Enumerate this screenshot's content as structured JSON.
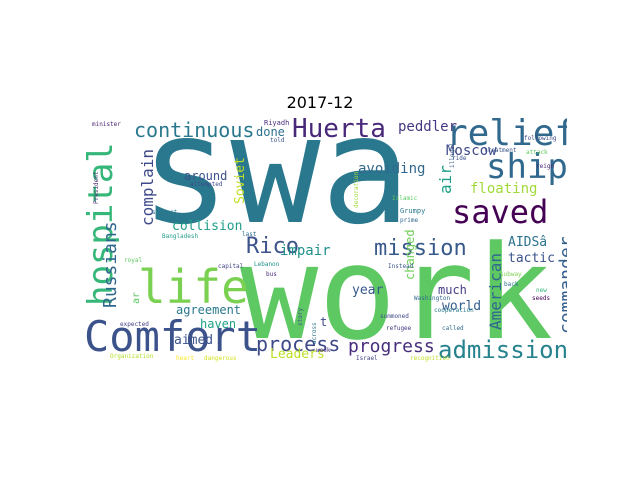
{
  "title": "2017-12",
  "words": [
    {
      "text": "swa",
      "color": "#2a788e"
    },
    {
      "text": "work",
      "color": "#5ec962"
    },
    {
      "text": "Comfort",
      "color": "#3b528b"
    },
    {
      "text": "hospital",
      "color": "#35b779"
    },
    {
      "text": "life",
      "color": "#7ad151"
    },
    {
      "text": "relief",
      "color": "#31688e"
    },
    {
      "text": "saved",
      "color": "#440154"
    },
    {
      "text": "ship",
      "color": "#31688e"
    },
    {
      "text": "mission",
      "color": "#38598c"
    },
    {
      "text": "admission",
      "color": "#26828e"
    },
    {
      "text": "Huerta",
      "color": "#482878"
    },
    {
      "text": "continuous",
      "color": "#2a788e"
    },
    {
      "text": "Rico",
      "color": "#3b528b"
    },
    {
      "text": "process",
      "color": "#3e4989"
    },
    {
      "text": "progress",
      "color": "#472d7b"
    },
    {
      "text": "commander",
      "color": "#355f8d"
    },
    {
      "text": "Russians",
      "color": "#31688e"
    },
    {
      "text": "complain",
      "color": "#3e4a89"
    },
    {
      "text": "American",
      "color": "#31688e"
    },
    {
      "text": "air",
      "color": "#1f9e89"
    },
    {
      "text": "floating",
      "color": "#a0da39"
    },
    {
      "text": "Moscow",
      "color": "#3e4a89"
    },
    {
      "text": "peddler",
      "color": "#443983"
    },
    {
      "text": "avoiding",
      "color": "#31688e"
    },
    {
      "text": "collision",
      "color": "#1f9e89"
    },
    {
      "text": "Soviet",
      "color": "#bddf26"
    },
    {
      "text": "around",
      "color": "#3b528b"
    },
    {
      "text": "done",
      "color": "#2c728e"
    },
    {
      "text": "impair",
      "color": "#21918c"
    },
    {
      "text": "agreement",
      "color": "#2a788e"
    },
    {
      "text": "aimed",
      "color": "#3b528b"
    },
    {
      "text": "haven",
      "color": "#1fa187"
    },
    {
      "text": "Leaders",
      "color": "#bddf26"
    },
    {
      "text": "changed",
      "color": "#6ece58"
    },
    {
      "text": "year",
      "color": "#38598c"
    },
    {
      "text": "much",
      "color": "#433e85"
    },
    {
      "text": "world",
      "color": "#355f8d"
    },
    {
      "text": "AIDSâ",
      "color": "#2c728e"
    },
    {
      "text": "tactic",
      "color": "#3b528b"
    },
    {
      "text": "ar",
      "color": "#5ec962"
    },
    {
      "text": "t",
      "color": "#3e4a89"
    },
    {
      "text": "minister",
      "color": "#481f70"
    },
    {
      "text": "President",
      "color": "#482475"
    },
    {
      "text": "Riyadh",
      "color": "#472d7b"
    },
    {
      "text": "told",
      "color": "#3b528b"
    },
    {
      "text": "suspect",
      "color": "#2a788e"
    },
    {
      "text": "Bangladesh",
      "color": "#1f9e89"
    },
    {
      "text": "attempted",
      "color": "#3e4a89"
    },
    {
      "text": "last",
      "color": "#31688e"
    },
    {
      "text": "Lebanon",
      "color": "#21918c"
    },
    {
      "text": "bus",
      "color": "#472d7b"
    },
    {
      "text": "capital",
      "color": "#414487"
    },
    {
      "text": "royal",
      "color": "#5ec962"
    },
    {
      "text": "expected",
      "color": "#433e85"
    },
    {
      "text": "Organization",
      "color": "#b5de2b"
    },
    {
      "text": "heart",
      "color": "#fde725"
    },
    {
      "text": "dangerous",
      "color": "#d2e21b"
    },
    {
      "text": "week",
      "color": "#46327e"
    },
    {
      "text": "story",
      "color": "#3b528b"
    },
    {
      "text": "across",
      "color": "#2c728e"
    },
    {
      "text": "Grumpy",
      "color": "#2a788e"
    },
    {
      "text": "prime",
      "color": "#31688e"
    },
    {
      "text": "Islamic",
      "color": "#5ec962"
    },
    {
      "text": "Instead",
      "color": "#38598c"
    },
    {
      "text": "summoned",
      "color": "#3e4a89"
    },
    {
      "text": "refugee",
      "color": "#443983"
    },
    {
      "text": "Israel",
      "color": "#414487"
    },
    {
      "text": "recognition",
      "color": "#c0df25"
    },
    {
      "text": "cooperation",
      "color": "#2a788e"
    },
    {
      "text": "called",
      "color": "#31688e"
    },
    {
      "text": "ride",
      "color": "#3b528b"
    },
    {
      "text": "illegal",
      "color": "#355f8d"
    },
    {
      "text": "attack",
      "color": "#5ec962"
    },
    {
      "text": "reign",
      "color": "#482878"
    },
    {
      "text": "treatment",
      "color": "#3b528b"
    },
    {
      "text": "subway",
      "color": "#7ad151"
    },
    {
      "text": "back",
      "color": "#2c728e"
    },
    {
      "text": "new",
      "color": "#35b779"
    },
    {
      "text": "seeds",
      "color": "#440154"
    },
    {
      "text": "following",
      "color": "#3e4a89"
    },
    {
      "text": "Washington",
      "color": "#31688e"
    },
    {
      "text": "decoration",
      "color": "#a0da39"
    }
  ]
}
